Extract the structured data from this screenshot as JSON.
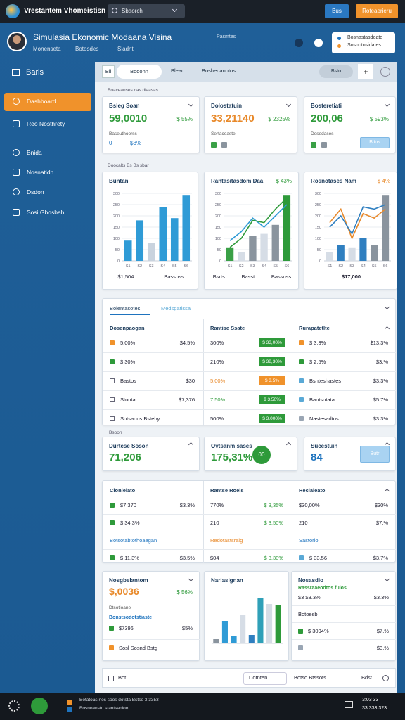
{
  "topbar": {
    "app_title": "Vrestantem Vhomeistisn",
    "search": "Sbaorch",
    "button_primary": "Bus",
    "button_secondary": "Roteaerieru"
  },
  "header": {
    "title": "Simulasia Ekonomic Modaana Visina",
    "links": [
      "Monenseta",
      "Botosdes",
      "Sladnt"
    ],
    "tag": "Pasmtes",
    "menu": [
      "Bosnastasdeate",
      "Sosnotosidates"
    ]
  },
  "sidebar": {
    "heading": "Baris",
    "items": [
      "Dashboard",
      "Reo Nosthrety",
      "Bnida",
      "Nosnatidn",
      "Dsdon",
      "Sosi Gbosbah"
    ]
  },
  "tabs": {
    "items": [
      "Bll",
      "Bodonn",
      "Bleao",
      "Boshedanotos"
    ],
    "filter": "Bsto",
    "add": "+"
  },
  "section_labels": [
    "Boaceanses cas dlaasas",
    "Doocalts Bs Bs sbar",
    "Bsoon"
  ],
  "kpi_cards": [
    {
      "title": "Bsleg Soan",
      "value": "59,0010",
      "color": "#2e9a3a",
      "delta": "$ 55%",
      "delta_color": "#2e9a3a",
      "note": "Baseuthoorss",
      "footer": [
        "0",
        "$3%"
      ]
    },
    {
      "title": "Dolostatuin",
      "value": "33,21140",
      "color": "#e8892a",
      "delta": "$ 2325%",
      "delta_color": "#2e9a3a",
      "note": "Sertaceaste"
    },
    {
      "title": "Bosteretiati",
      "value": "200,06",
      "color": "#2e9a3a",
      "delta": "$ 593%",
      "delta_color": "#2e9a3a",
      "note": "Desedases",
      "button": "Bitos"
    }
  ],
  "charts": [
    {
      "type": "bar",
      "title": "Buntan",
      "categories": [
        "S1",
        "S2",
        "S3",
        "S4",
        "S5",
        "S6"
      ],
      "ylim": [
        0,
        300
      ],
      "yticks": [
        0,
        50,
        100,
        150,
        200,
        250,
        300
      ],
      "series": [
        {
          "kind": "bar",
          "colors": [
            "#2f9bd6",
            "#2f9bd6",
            "#c9d3de",
            "#2f9bd6",
            "#2f9bd6",
            "#2f9bd6"
          ],
          "values": [
            90,
            180,
            80,
            240,
            190,
            290
          ]
        }
      ],
      "footer": [
        "$1,504",
        "Bassoss"
      ]
    },
    {
      "type": "combo",
      "title": "Rantasitasdom Daa",
      "badge": "$ 43%",
      "badge_color": "#2e9a3a",
      "categories": [
        "S1",
        "S2",
        "S3",
        "S4",
        "S5",
        "S6"
      ],
      "ylim": [
        0,
        300
      ],
      "yticks": [
        0,
        50,
        100,
        150,
        200,
        250,
        300
      ],
      "series": [
        {
          "kind": "bar",
          "colors": [
            "#3aa046",
            "#d6dde6",
            "#8a949e",
            "#d6dde6",
            "#8a949e",
            "#2e9a3a"
          ],
          "values": [
            60,
            40,
            110,
            120,
            160,
            290
          ]
        },
        {
          "kind": "line",
          "color": "#2f9bd6",
          "values": [
            90,
            130,
            190,
            150,
            200,
            250
          ]
        },
        {
          "kind": "line",
          "color": "#2e9a3a",
          "values": [
            60,
            100,
            180,
            170,
            230,
            280
          ]
        }
      ],
      "footer": [
        "Bsrts",
        "Basst",
        "Bassoss"
      ]
    },
    {
      "type": "combo",
      "title": "Rosnotases Nam",
      "badge": "$ 4%",
      "badge_color": "#e8892a",
      "categories": [
        "S1",
        "S2",
        "S3",
        "S4",
        "S5",
        "S6"
      ],
      "ylim": [
        0,
        300
      ],
      "yticks": [
        0,
        50,
        100,
        150,
        200,
        250,
        300
      ],
      "series": [
        {
          "kind": "bar",
          "colors": [
            "#d6dde6",
            "#2f7fc0",
            "#d6dde6",
            "#2f7fc0",
            "#8a949e",
            "#8a949e"
          ],
          "values": [
            40,
            70,
            60,
            100,
            70,
            290
          ]
        },
        {
          "kind": "line",
          "color": "#e8892a",
          "values": [
            170,
            230,
            100,
            210,
            190,
            230
          ]
        },
        {
          "kind": "line",
          "color": "#2f7fc0",
          "values": [
            150,
            200,
            120,
            240,
            230,
            250
          ]
        }
      ],
      "footer": [
        "$17,000"
      ]
    }
  ],
  "table_1": {
    "tabs": [
      "Bolentasotes",
      "Medsgatissa"
    ],
    "columns": [
      {
        "heading": "Dosenpaogan",
        "rows": [
          {
            "icon": "#f0922b",
            "label": "5.00%",
            "value": "$4.5%"
          },
          {
            "icon": "#2e9a3a",
            "label": "$ 30%"
          },
          {
            "icon": "outline",
            "label": "Bastos",
            "value": "$30"
          },
          {
            "icon": "outline",
            "label": "Stonta",
            "value": "$7,376"
          },
          {
            "icon": "outline",
            "label": "Sotsados Bsteby"
          }
        ]
      },
      {
        "heading": "Rantise Ssate",
        "rows": [
          {
            "label": "300%",
            "value": "$ 33,00%",
            "badge": "#2e9a3a"
          },
          {
            "label": "210%",
            "value": "$ 38,30%",
            "badge": "#2e9a3a"
          },
          {
            "label": "5.00%",
            "value": "$ 3.5%",
            "badge": "#f0922b",
            "color": "#e8892a"
          },
          {
            "label": "7.50%",
            "value": "$ 3,50%",
            "badge": "#2e9a3a",
            "color": "#2e9a3a"
          },
          {
            "label": "500%",
            "value": "$ 3,000%",
            "badge": "#2e9a3a"
          }
        ]
      },
      {
        "heading": "Rurapatetlte",
        "rows": [
          {
            "icon": "#f0922b",
            "label": "$ 3.3%",
            "value": "$13.3%"
          },
          {
            "icon": "#2e9a3a",
            "label": "$ 2.5%",
            "value": "$3.%"
          },
          {
            "icon": "#5aa9d6",
            "label": "Bsnteshastes",
            "value": "$3.3%"
          },
          {
            "icon": "#5aa9d6",
            "label": "Bantsotata",
            "value": "$5.7%"
          },
          {
            "icon": "#9aa6b4",
            "label": "Nastesadtos",
            "value": "$3.3%"
          }
        ]
      }
    ]
  },
  "kpi_cards_2": [
    {
      "title": "Durtese Soson",
      "value": "71,206",
      "color": "#2e9a3a"
    },
    {
      "title": "Ovtsanm sases",
      "value": "175,31%",
      "color": "#2e9a3a",
      "badge": "00"
    },
    {
      "title": "Sucestuin",
      "value": "84",
      "color": "#1e73be",
      "button": "Butr"
    }
  ],
  "table_2": {
    "columns": [
      {
        "heading": "Clonielato",
        "rows": [
          {
            "icon": "#2e9a3a",
            "label": "$7,370",
            "value": "$3.3%"
          },
          {
            "icon": "#2e9a3a",
            "label": "$ 34,3%"
          },
          {
            "subheading": "Botsotabtothoaegan",
            "color": "#1e73be"
          },
          {
            "icon": "#2e9a3a",
            "label": "$ 11.3%",
            "value": "$3.5%"
          }
        ]
      },
      {
        "heading": "Rantse Roeis",
        "rows": [
          {
            "label": "770%",
            "value": "$ 3,35%",
            "value_color": "#2e9a3a"
          },
          {
            "label": "210",
            "value": "$ 3,50%",
            "value_color": "#2e9a3a"
          },
          {
            "subheading": "Redotastsraig",
            "color": "#e8892a"
          },
          {
            "label": "$04",
            "value": "$ 3,30%",
            "value_color": "#2e9a3a"
          }
        ]
      },
      {
        "heading": "Reclaieato",
        "rows": [
          {
            "label": "$30,00%",
            "value": "$30%"
          },
          {
            "label": "210",
            "value": "$7.%"
          },
          {
            "subheading": "Sastorlo",
            "color": "#1e73be"
          },
          {
            "icon": "#5aa9d6",
            "label": "$ 33.56",
            "value": "$3.7%"
          }
        ]
      }
    ]
  },
  "bottom": {
    "summary": {
      "title": "Nosgbelantom",
      "value": "$,0036",
      "color": "#e8892a",
      "delta": "$ 56%",
      "note": "Dtsotioane",
      "subheading": "Bonstsodotstiaste",
      "rows": [
        {
          "icon": "#2e9a3a",
          "label": "$7396",
          "value": "$5%"
        },
        {
          "icon": "#f0922b",
          "label": "Sosl Sosnd Bstg"
        }
      ]
    },
    "chart": {
      "type": "bar",
      "title": "Narlasignan",
      "ylim": [
        0,
        200
      ],
      "series": [
        {
          "kind": "bar",
          "colors": [
            "#8a949e",
            "#2f9bd6",
            "#2f9bd6",
            "#d6dde6",
            "#2f7fc0",
            "#2fa0b8",
            "#d6dde6",
            "#2e9a3a"
          ],
          "values": [
            15,
            80,
            25,
            100,
            30,
            160,
            140,
            135
          ]
        }
      ]
    },
    "detail": {
      "title": "Nosasdio",
      "subheading": "Rassraaeodtos fulos",
      "rows": [
        {
          "label": "$3 $3.3%",
          "value": "$3.3%"
        },
        {
          "label": "Botoesb"
        },
        {
          "icon": "#2e9a3a",
          "label": "$ 3094%",
          "value": "$7.%"
        },
        {
          "icon": "#9aa6b4",
          "value": "$3.%"
        }
      ]
    }
  },
  "footer_bar": {
    "items": [
      "Bot",
      "Dotnten",
      "Botso Btssots",
      "Bdst"
    ]
  },
  "taskbar": {
    "lines": [
      "Botatoas nos soos dotsta Bstso 3 3353",
      "Bosnoanstd stantsanioo"
    ],
    "time": "3:03 33",
    "date": "33 333 323"
  }
}
